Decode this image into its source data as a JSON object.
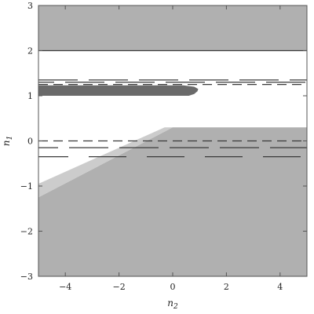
{
  "chart_data": {
    "type": "area",
    "title": "",
    "xlabel": "n",
    "xlabel_sub": "2",
    "ylabel": "n",
    "ylabel_sub": "1",
    "xlim": [
      -5,
      5
    ],
    "ylim": [
      -3,
      3
    ],
    "x_ticks": [
      -4,
      -2,
      0,
      2,
      4
    ],
    "y_ticks": [
      -3,
      -2,
      -1,
      0,
      1,
      2,
      3
    ],
    "grid": false,
    "regions": [
      {
        "shade": "#b0b0b0",
        "points": [
          [
            -5,
            2
          ],
          [
            5,
            2
          ],
          [
            5,
            3
          ],
          [
            -5,
            3
          ]
        ]
      },
      {
        "shade": "#b0b0b0",
        "points": [
          [
            -5,
            -3
          ],
          [
            5,
            -3
          ],
          [
            5,
            0.3
          ],
          [
            0,
            0.3
          ],
          [
            -5,
            -1.25
          ]
        ]
      },
      {
        "shade": "#cccccc",
        "points": [
          [
            -5,
            -1.25
          ],
          [
            0,
            0.3
          ],
          [
            -0.3,
            0.3
          ],
          [
            -5,
            -0.95
          ]
        ]
      },
      {
        "shade": "#6a6a6a",
        "points": [
          [
            -5,
            1.0
          ],
          [
            0.6,
            1.0
          ],
          [
            0.8,
            1.04
          ],
          [
            0.92,
            1.1
          ],
          [
            0.95,
            1.15
          ],
          [
            0.8,
            1.2
          ],
          [
            0.4,
            1.23
          ],
          [
            -5,
            1.23
          ]
        ]
      }
    ],
    "lines": [
      {
        "y": 2.0,
        "x_from": -5,
        "x_to": 5,
        "style": "solid"
      },
      {
        "y": 1.35,
        "x_from": -5,
        "x_to": 5,
        "style": "long-dash"
      },
      {
        "y": 1.3,
        "x_from": -5,
        "x_to": 5,
        "style": "long-dash"
      },
      {
        "y": 1.25,
        "x_from": -5,
        "x_to": 5,
        "style": "dash"
      },
      {
        "y": 0.0,
        "x_from": -5,
        "x_to": 5,
        "style": "dash"
      },
      {
        "y": -0.15,
        "x_from": -5,
        "x_to": 5,
        "style": "long-dash"
      },
      {
        "y": -0.35,
        "x_from": -5,
        "x_to": 5,
        "style": "long-dash-sparse"
      }
    ]
  }
}
